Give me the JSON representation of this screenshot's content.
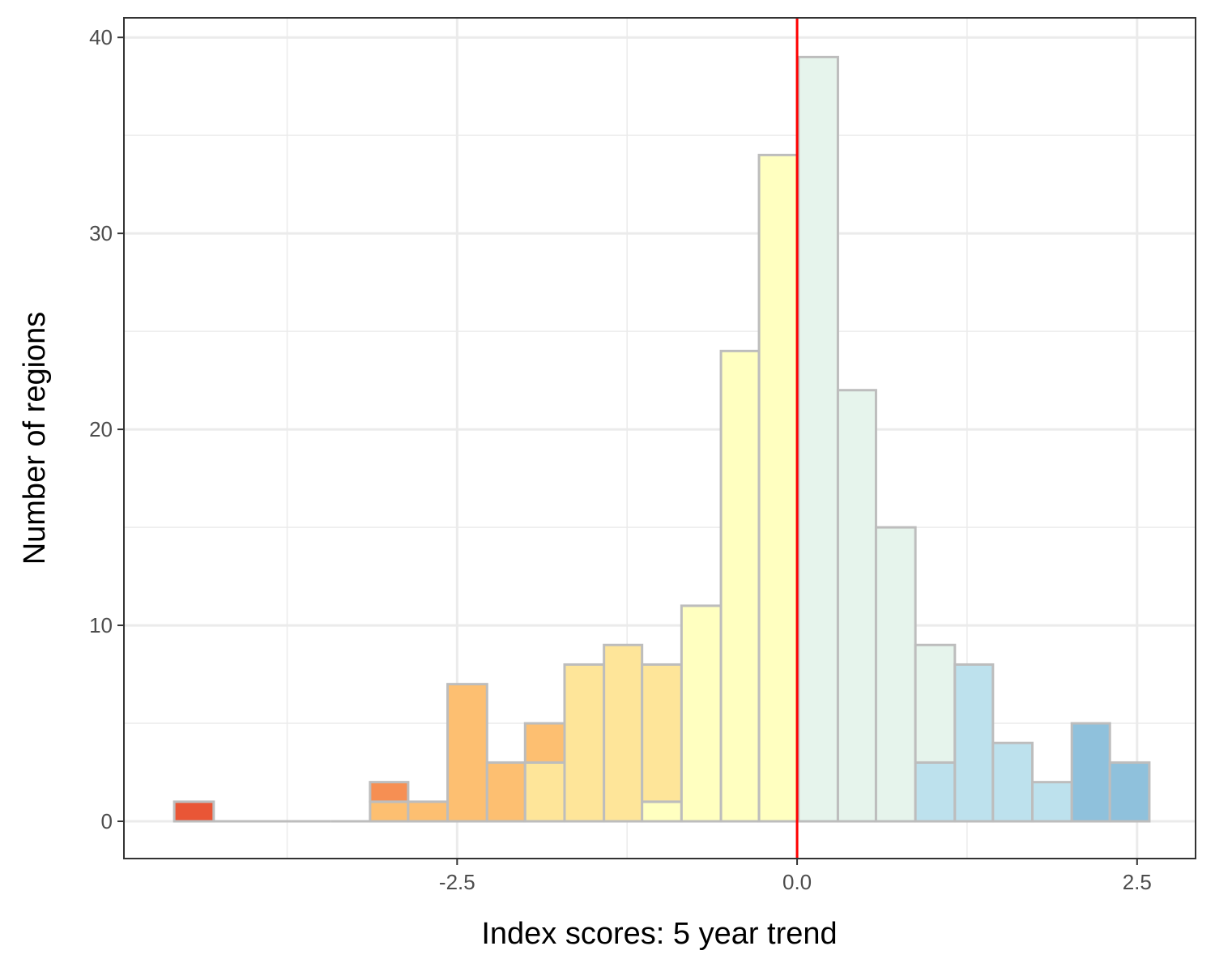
{
  "chart_data": {
    "type": "bar",
    "subtype": "stacked-histogram",
    "xlabel": "Index scores: 5 year trend",
    "ylabel": "Number of regions",
    "xlim": [
      -4.95,
      2.93
    ],
    "ylim": [
      -1.9,
      41
    ],
    "x_ticks": [
      {
        "value": -2.5,
        "label": "-2.5"
      },
      {
        "value": 0,
        "label": "0.0"
      },
      {
        "value": 2.5,
        "label": "2.5"
      }
    ],
    "y_ticks": [
      {
        "value": 0,
        "label": "0"
      },
      {
        "value": 10,
        "label": "10"
      },
      {
        "value": 20,
        "label": "20"
      },
      {
        "value": 30,
        "label": "30"
      },
      {
        "value": 40,
        "label": "40"
      }
    ],
    "x_minor_gridlines": [
      -3.75,
      -1.25,
      1.25
    ],
    "y_minor_gridlines": [
      5,
      15,
      25,
      35
    ],
    "grid": true,
    "reference_line": {
      "x": 0,
      "color": "#ff0000"
    },
    "bin_outline_color": "#bdbdbd",
    "bins": [
      {
        "x0": -4.58,
        "x1": -4.29,
        "segments": [
          {
            "count": 1,
            "color": "#e95636"
          }
        ]
      },
      {
        "x0": -4.29,
        "x1": -4.0,
        "segments": []
      },
      {
        "x0": -4.0,
        "x1": -3.72,
        "segments": []
      },
      {
        "x0": -3.72,
        "x1": -3.43,
        "segments": []
      },
      {
        "x0": -3.43,
        "x1": -3.14,
        "segments": []
      },
      {
        "x0": -3.14,
        "x1": -2.86,
        "segments": [
          {
            "count": 1,
            "color": "#fdbf71"
          },
          {
            "count": 1,
            "color": "#f68f53"
          }
        ]
      },
      {
        "x0": -2.86,
        "x1": -2.57,
        "segments": [
          {
            "count": 1,
            "color": "#fdbf71"
          }
        ]
      },
      {
        "x0": -2.57,
        "x1": -2.28,
        "segments": [
          {
            "count": 7,
            "color": "#fdbf71"
          }
        ]
      },
      {
        "x0": -2.28,
        "x1": -2.0,
        "segments": [
          {
            "count": 3,
            "color": "#fdbf71"
          }
        ]
      },
      {
        "x0": -2.0,
        "x1": -1.71,
        "segments": [
          {
            "count": 3,
            "color": "#fee599"
          },
          {
            "count": 2,
            "color": "#fdbf71"
          }
        ]
      },
      {
        "x0": -1.71,
        "x1": -1.42,
        "segments": [
          {
            "count": 8,
            "color": "#fee599"
          }
        ]
      },
      {
        "x0": -1.42,
        "x1": -1.14,
        "segments": [
          {
            "count": 9,
            "color": "#fee599"
          }
        ]
      },
      {
        "x0": -1.14,
        "x1": -0.85,
        "segments": [
          {
            "count": 1,
            "color": "#ffffc0"
          },
          {
            "count": 7,
            "color": "#fee599"
          }
        ]
      },
      {
        "x0": -0.85,
        "x1": -0.56,
        "segments": [
          {
            "count": 11,
            "color": "#ffffc0"
          }
        ]
      },
      {
        "x0": -0.56,
        "x1": -0.28,
        "segments": [
          {
            "count": 24,
            "color": "#ffffc0"
          }
        ]
      },
      {
        "x0": -0.28,
        "x1": 0.01,
        "segments": [
          {
            "count": 34,
            "color": "#ffffc0"
          }
        ]
      },
      {
        "x0": 0.01,
        "x1": 0.3,
        "segments": [
          {
            "count": 39,
            "color": "#e6f4ec"
          }
        ]
      },
      {
        "x0": 0.3,
        "x1": 0.58,
        "segments": [
          {
            "count": 22,
            "color": "#e6f4ec"
          }
        ]
      },
      {
        "x0": 0.58,
        "x1": 0.87,
        "segments": [
          {
            "count": 15,
            "color": "#e6f4ec"
          }
        ]
      },
      {
        "x0": 0.87,
        "x1": 1.16,
        "segments": [
          {
            "count": 3,
            "color": "#bde1ed"
          },
          {
            "count": 6,
            "color": "#e6f4ec"
          }
        ]
      },
      {
        "x0": 1.16,
        "x1": 1.44,
        "segments": [
          {
            "count": 8,
            "color": "#bde1ed"
          }
        ]
      },
      {
        "x0": 1.44,
        "x1": 1.73,
        "segments": [
          {
            "count": 4,
            "color": "#bde1ed"
          }
        ]
      },
      {
        "x0": 1.73,
        "x1": 2.02,
        "segments": [
          {
            "count": 2,
            "color": "#bde1ed"
          }
        ]
      },
      {
        "x0": 2.02,
        "x1": 2.3,
        "segments": [
          {
            "count": 5,
            "color": "#8fc1dc"
          }
        ]
      },
      {
        "x0": 2.3,
        "x1": 2.59,
        "segments": [
          {
            "count": 3,
            "color": "#8fc1dc"
          }
        ]
      }
    ]
  }
}
